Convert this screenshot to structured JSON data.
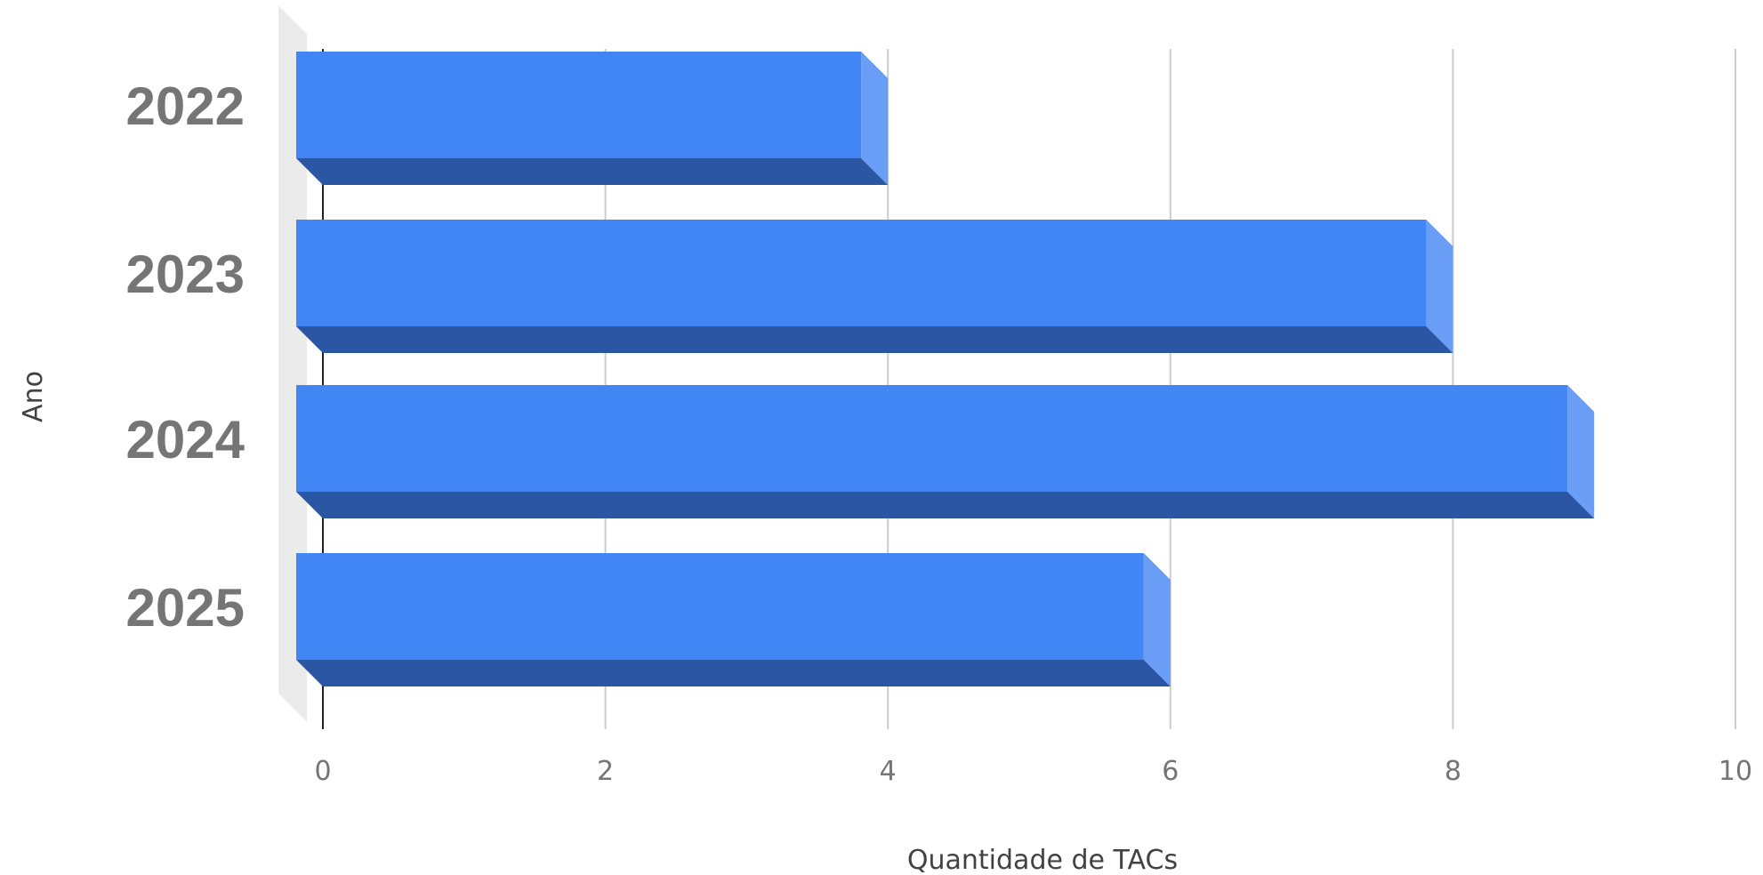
{
  "chart_data": {
    "type": "bar",
    "orientation": "horizontal",
    "style": "3d",
    "categories": [
      "2022",
      "2023",
      "2024",
      "2025"
    ],
    "values": [
      4,
      8,
      9,
      6
    ],
    "xlabel": "Quantidade de TACs",
    "ylabel": "Ano",
    "xlim": [
      0,
      10
    ],
    "xticks": [
      "0",
      "2",
      "4",
      "6",
      "8",
      "10"
    ],
    "grid": true,
    "legend": "none",
    "colors": {
      "bar_front": "#4285f4",
      "bar_bottom": "#2b56a3",
      "bar_side": "#6a9df6",
      "grid": "#cccccc",
      "axis": "#222222",
      "label": "#757575",
      "floor": "#ebebeb"
    }
  }
}
